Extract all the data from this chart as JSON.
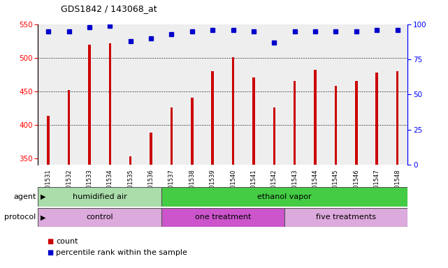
{
  "title": "GDS1842 / 143068_at",
  "samples": [
    "GSM101531",
    "GSM101532",
    "GSM101533",
    "GSM101534",
    "GSM101535",
    "GSM101536",
    "GSM101537",
    "GSM101538",
    "GSM101539",
    "GSM101540",
    "GSM101541",
    "GSM101542",
    "GSM101543",
    "GSM101544",
    "GSM101545",
    "GSM101546",
    "GSM101547",
    "GSM101548"
  ],
  "counts": [
    413,
    452,
    519,
    521,
    353,
    388,
    426,
    440,
    480,
    501,
    470,
    426,
    465,
    482,
    458,
    465,
    478,
    480
  ],
  "percentile_ranks": [
    95,
    95,
    98,
    99,
    88,
    90,
    93,
    95,
    96,
    96,
    95,
    87,
    95,
    95,
    95,
    95,
    96,
    96
  ],
  "ylim_left": [
    340,
    550
  ],
  "ylim_right": [
    0,
    100
  ],
  "yticks_left": [
    350,
    400,
    450,
    500,
    550
  ],
  "yticks_right": [
    0,
    25,
    50,
    75,
    100
  ],
  "bar_color": "#cc0000",
  "dot_color": "#0000cc",
  "grid_lines": [
    400,
    450,
    500
  ],
  "agent_groups": [
    {
      "label": "humidified air",
      "start": 0,
      "end": 6,
      "color": "#aaddaa"
    },
    {
      "label": "ethanol vapor",
      "start": 6,
      "end": 18,
      "color": "#44cc44"
    }
  ],
  "protocol_groups": [
    {
      "label": "control",
      "start": 0,
      "end": 6,
      "color": "#ddaadd"
    },
    {
      "label": "one treatment",
      "start": 6,
      "end": 12,
      "color": "#cc55cc"
    },
    {
      "label": "five treatments",
      "start": 12,
      "end": 18,
      "color": "#ddaadd"
    }
  ],
  "legend_count_label": "count",
  "legend_pct_label": "percentile rank within the sample",
  "bar_width": 0.12,
  "plot_bg_color": "#eeeeee",
  "fig_bg_color": "#ffffff"
}
